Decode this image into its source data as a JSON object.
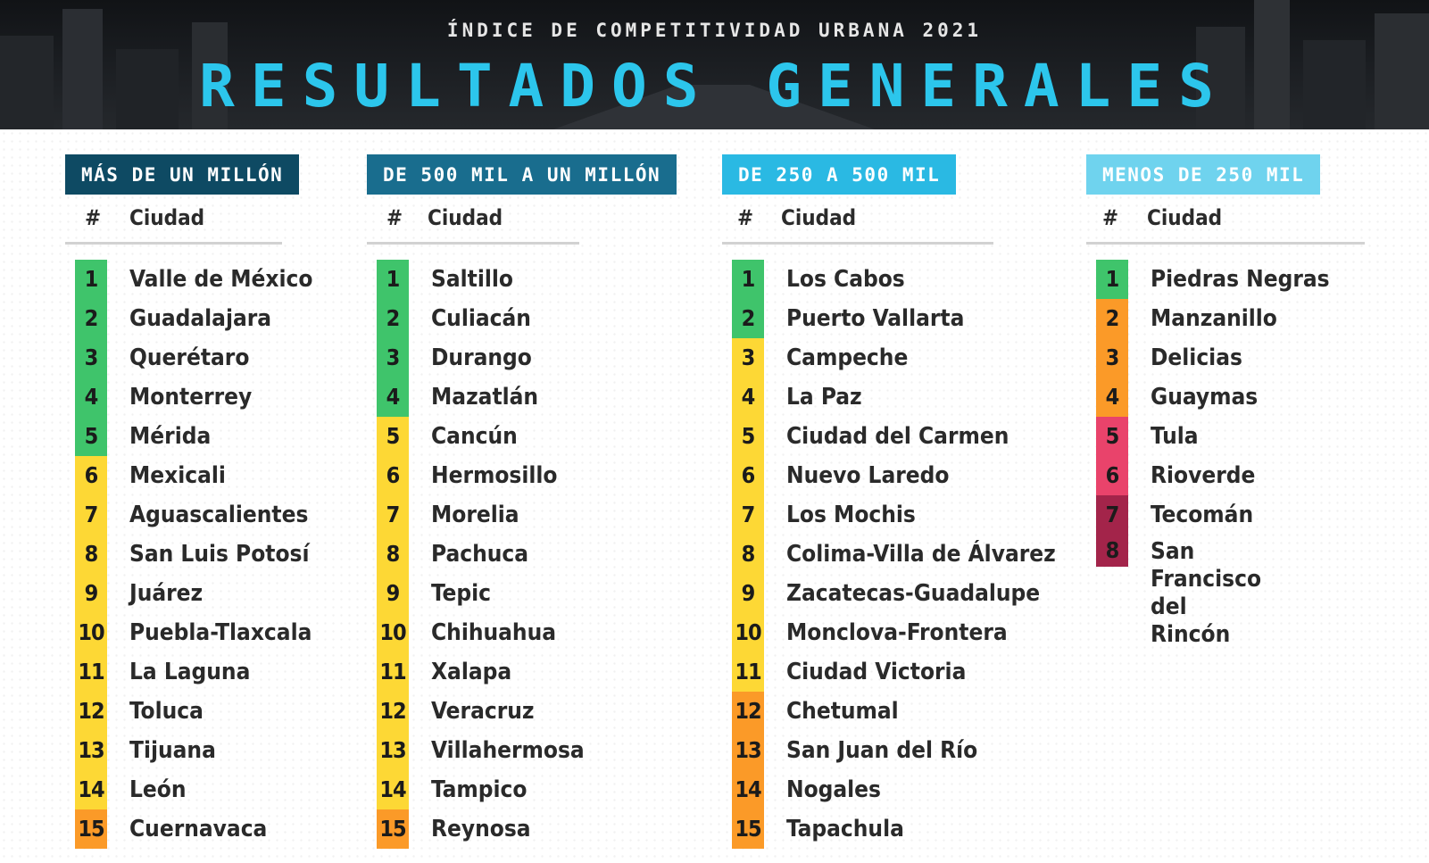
{
  "header": {
    "kicker": "ÍNDICE DE COMPETITIVIDAD URBANA 2021",
    "title": "RESULTADOS GENERALES"
  },
  "tier_colors": {
    "green": "#3fc46b",
    "yellow": "#fdd835",
    "orange": "#fb9a28",
    "pink": "#e9436b",
    "maroon": "#a3244a"
  },
  "columns": [
    {
      "label": "MÁS DE UN MILLÓN",
      "label_bg": "#0e4a63",
      "num_header": "#",
      "city_header": "Ciudad",
      "rows": [
        {
          "rank": "1",
          "city": "Valle de México",
          "tier": "green"
        },
        {
          "rank": "2",
          "city": "Guadalajara",
          "tier": "green"
        },
        {
          "rank": "3",
          "city": "Querétaro",
          "tier": "green"
        },
        {
          "rank": "4",
          "city": "Monterrey",
          "tier": "green"
        },
        {
          "rank": "5",
          "city": "Mérida",
          "tier": "green"
        },
        {
          "rank": "6",
          "city": "Mexicali",
          "tier": "yellow"
        },
        {
          "rank": "7",
          "city": "Aguascalientes",
          "tier": "yellow"
        },
        {
          "rank": "8",
          "city": "San Luis Potosí",
          "tier": "yellow"
        },
        {
          "rank": "9",
          "city": "Juárez",
          "tier": "yellow"
        },
        {
          "rank": "10",
          "city": "Puebla-Tlaxcala",
          "tier": "yellow"
        },
        {
          "rank": "11",
          "city": "La Laguna",
          "tier": "yellow"
        },
        {
          "rank": "12",
          "city": "Toluca",
          "tier": "yellow"
        },
        {
          "rank": "13",
          "city": "Tijuana",
          "tier": "yellow"
        },
        {
          "rank": "14",
          "city": "León",
          "tier": "yellow"
        },
        {
          "rank": "15",
          "city": "Cuernavaca",
          "tier": "orange"
        }
      ]
    },
    {
      "label": "DE 500 MIL A UN MILLÓN",
      "label_bg": "#196d8e",
      "num_header": "#",
      "city_header": "Ciudad",
      "rows": [
        {
          "rank": "1",
          "city": "Saltillo",
          "tier": "green"
        },
        {
          "rank": "2",
          "city": "Culiacán",
          "tier": "green"
        },
        {
          "rank": "3",
          "city": "Durango",
          "tier": "green"
        },
        {
          "rank": "4",
          "city": "Mazatlán",
          "tier": "green"
        },
        {
          "rank": "5",
          "city": "Cancún",
          "tier": "yellow"
        },
        {
          "rank": "6",
          "city": "Hermosillo",
          "tier": "yellow"
        },
        {
          "rank": "7",
          "city": "Morelia",
          "tier": "yellow"
        },
        {
          "rank": "8",
          "city": "Pachuca",
          "tier": "yellow"
        },
        {
          "rank": "9",
          "city": "Tepic",
          "tier": "yellow"
        },
        {
          "rank": "10",
          "city": "Chihuahua",
          "tier": "yellow"
        },
        {
          "rank": "11",
          "city": "Xalapa",
          "tier": "yellow"
        },
        {
          "rank": "12",
          "city": "Veracruz",
          "tier": "yellow"
        },
        {
          "rank": "13",
          "city": "Villahermosa",
          "tier": "yellow"
        },
        {
          "rank": "14",
          "city": "Tampico",
          "tier": "yellow"
        },
        {
          "rank": "15",
          "city": "Reynosa",
          "tier": "orange"
        }
      ]
    },
    {
      "label": "DE 250 A 500 MIL",
      "label_bg": "#2ab9e3",
      "num_header": "#",
      "city_header": "Ciudad",
      "rows": [
        {
          "rank": "1",
          "city": "Los Cabos",
          "tier": "green"
        },
        {
          "rank": "2",
          "city": "Puerto Vallarta",
          "tier": "green"
        },
        {
          "rank": "3",
          "city": "Campeche",
          "tier": "yellow"
        },
        {
          "rank": "4",
          "city": "La Paz",
          "tier": "yellow"
        },
        {
          "rank": "5",
          "city": "Ciudad del Carmen",
          "tier": "yellow"
        },
        {
          "rank": "6",
          "city": "Nuevo Laredo",
          "tier": "yellow"
        },
        {
          "rank": "7",
          "city": "Los Mochis",
          "tier": "yellow"
        },
        {
          "rank": "8",
          "city": "Colima-Villa de Álvarez",
          "tier": "yellow"
        },
        {
          "rank": "9",
          "city": "Zacatecas-Guadalupe",
          "tier": "yellow"
        },
        {
          "rank": "10",
          "city": "Monclova-Frontera",
          "tier": "yellow"
        },
        {
          "rank": "11",
          "city": "Ciudad Victoria",
          "tier": "yellow"
        },
        {
          "rank": "12",
          "city": "Chetumal",
          "tier": "orange"
        },
        {
          "rank": "13",
          "city": "San Juan del Río",
          "tier": "orange"
        },
        {
          "rank": "14",
          "city": "Nogales",
          "tier": "orange"
        },
        {
          "rank": "15",
          "city": "Tapachula",
          "tier": "orange"
        }
      ]
    },
    {
      "label": "MENOS DE 250 MIL",
      "label_bg": "#6fd3ee",
      "num_header": "#",
      "city_header": "Ciudad",
      "rows": [
        {
          "rank": "1",
          "city": "Piedras Negras",
          "tier": "green"
        },
        {
          "rank": "2",
          "city": "Manzanillo",
          "tier": "orange"
        },
        {
          "rank": "3",
          "city": "Delicias",
          "tier": "orange"
        },
        {
          "rank": "4",
          "city": "Guaymas",
          "tier": "orange"
        },
        {
          "rank": "5",
          "city": "Tula",
          "tier": "pink"
        },
        {
          "rank": "6",
          "city": "Rioverde",
          "tier": "pink"
        },
        {
          "rank": "7",
          "city": "Tecomán",
          "tier": "maroon"
        },
        {
          "rank": "8",
          "city": "San Francisco\ndel Rincón",
          "tier": "maroon"
        }
      ]
    }
  ]
}
